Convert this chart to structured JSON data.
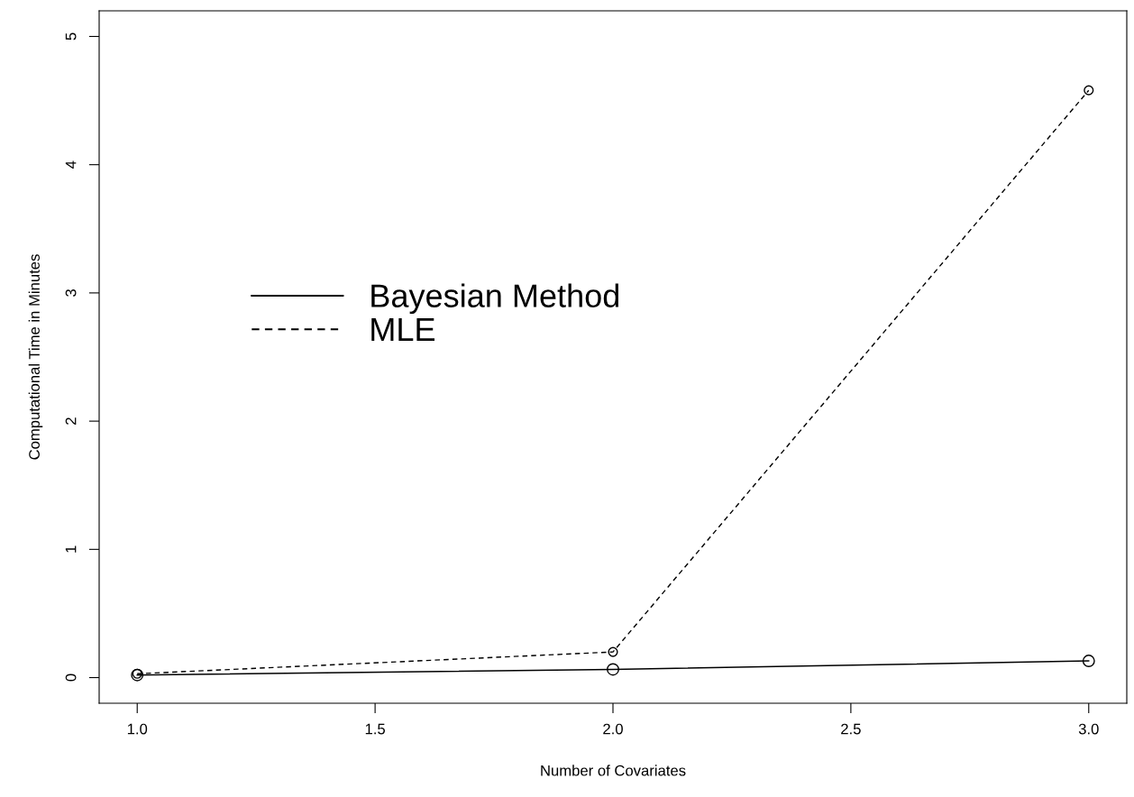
{
  "chart_data": {
    "type": "line",
    "xlabel": "Number of Covariates",
    "ylabel": "Computational Time in Minutes",
    "x": [
      1,
      2,
      3
    ],
    "series": [
      {
        "name": "Bayesian Method",
        "color": "#000000",
        "values": [
          0.02,
          0.064,
          0.13
        ],
        "line_style": "solid"
      },
      {
        "name": "MLE",
        "color": "#000000",
        "values": [
          0.03,
          0.2,
          4.58
        ],
        "line_style": "dashed"
      }
    ],
    "xlim": [
      0.92,
      3.08
    ],
    "ylim": [
      -0.2,
      5.2
    ],
    "xticks": [
      {
        "value": 1,
        "label": "1.0"
      },
      {
        "value": 1.5,
        "label": "1.5"
      },
      {
        "value": 2,
        "label": "2.0"
      },
      {
        "value": 2.5,
        "label": "2.5"
      },
      {
        "value": 3,
        "label": "3.0"
      }
    ],
    "yticks": [
      0,
      1,
      2,
      3,
      4,
      5
    ],
    "marker": "circle",
    "grid": false,
    "legend": "center"
  }
}
